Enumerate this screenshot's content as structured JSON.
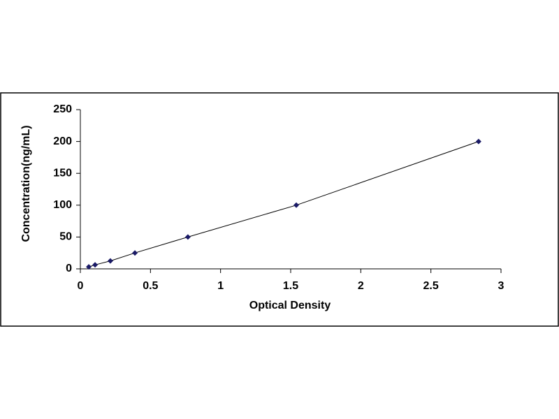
{
  "chart_data": {
    "type": "line",
    "xlabel": "Optical Density",
    "ylabel": "Concentration(ng/mL)",
    "x": [
      0.06,
      0.105,
      0.214,
      0.389,
      0.767,
      1.54,
      2.84
    ],
    "series": [
      {
        "color": "#1a1a66",
        "line_color": "#000000",
        "marker": "diamond",
        "values": [
          3.12,
          6.25,
          12.5,
          25,
          50,
          100,
          200
        ]
      }
    ],
    "xlim": [
      0,
      3
    ],
    "xticks": [
      0,
      0.5,
      1,
      1.5,
      2,
      2.5,
      3
    ],
    "ylim": [
      0,
      250
    ],
    "yticks": [
      0,
      50,
      100,
      150,
      200,
      250
    ],
    "grid": false
  }
}
